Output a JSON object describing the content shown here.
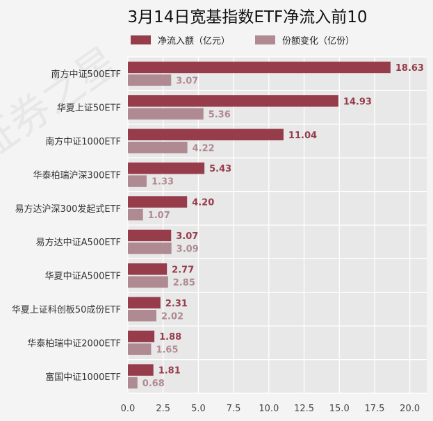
{
  "chart_data": {
    "type": "bar",
    "orientation": "horizontal",
    "title": "3月14日宽基指数ETF净流入前10",
    "categories": [
      "南方中证500ETF",
      "华夏上证50ETF",
      "南方中证1000ETF",
      "华泰柏瑞沪深300ETF",
      "易方达沪深300发起式ETF",
      "易方达中证A500ETF",
      "华夏中证A500ETF",
      "华夏上证科创板50成份ETF",
      "华泰柏瑞中证2000ETF",
      "富国中证1000ETF"
    ],
    "series": [
      {
        "name": "净流入额（亿元）",
        "color": "#963c4b",
        "values": [
          18.63,
          14.93,
          11.04,
          5.43,
          4.2,
          3.07,
          2.77,
          2.31,
          1.88,
          1.81
        ],
        "labels": [
          "18.63",
          "14.93",
          "11.04",
          "5.43",
          "4.20",
          "3.07",
          "2.77",
          "2.31",
          "1.88",
          "1.81"
        ]
      },
      {
        "name": "份额变化（亿份）",
        "color": "#b08a92",
        "values": [
          3.07,
          5.36,
          4.22,
          1.33,
          1.07,
          3.09,
          2.85,
          2.02,
          1.65,
          0.68
        ],
        "labels": [
          "3.07",
          "5.36",
          "4.22",
          "1.33",
          "1.07",
          "3.09",
          "2.85",
          "2.02",
          "1.65",
          "0.68"
        ]
      }
    ],
    "xlim": [
      0,
      21.2
    ],
    "xticks": [
      "0.0",
      "2.5",
      "5.0",
      "7.5",
      "10.0",
      "12.5",
      "15.0",
      "17.5",
      "20.0"
    ],
    "grid": true,
    "legend_position": "top"
  }
}
